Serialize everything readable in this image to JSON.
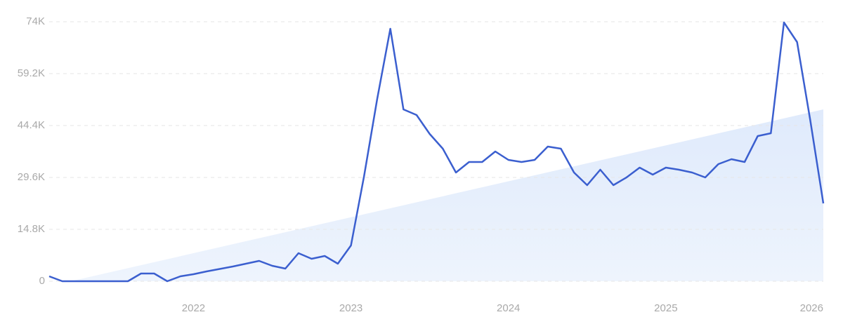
{
  "chart_data": {
    "type": "line",
    "categories": [
      null,
      null,
      null,
      null,
      null,
      null,
      null,
      null,
      null,
      null,
      null,
      "2022",
      null,
      null,
      null,
      null,
      null,
      null,
      null,
      null,
      null,
      null,
      null,
      "2023",
      null,
      null,
      null,
      null,
      null,
      null,
      null,
      null,
      null,
      null,
      null,
      "2024",
      null,
      null,
      null,
      null,
      null,
      null,
      null,
      null,
      null,
      null,
      null,
      "2025",
      null,
      null,
      null,
      null,
      null,
      null,
      null,
      null,
      null,
      null,
      null,
      "2026"
    ],
    "series": [
      {
        "color": "#3b5fcf",
        "values": [
          1400,
          0,
          0,
          0,
          0,
          0,
          0,
          2200,
          2200,
          0,
          1400,
          2000,
          2800,
          3500,
          4200,
          5000,
          5800,
          4400,
          3600,
          8000,
          6400,
          7200,
          5000,
          10200,
          30000,
          52000,
          72000,
          49000,
          47400,
          42000,
          37800,
          31000,
          34000,
          34000,
          37000,
          34600,
          34000,
          34600,
          38400,
          37800,
          31000,
          27400,
          31800,
          27400,
          29600,
          32400,
          30400,
          32400,
          31800,
          31000,
          29600,
          33400,
          34800,
          34000,
          41400,
          42200,
          73800,
          68200,
          46000,
          22200
        ]
      }
    ],
    "trend": [
      -1400,
      49000
    ],
    "trend_color": "#e3edfc",
    "ylim": [
      0,
      74000
    ],
    "yticks": [
      0,
      {
        "value": 14800,
        "label": "14.8K"
      },
      {
        "value": 29600,
        "label": "29.6K"
      },
      {
        "value": 44400,
        "label": "44.4K"
      },
      {
        "value": 59200,
        "label": "59.2K"
      },
      {
        "value": 74000,
        "label": "74K"
      }
    ],
    "grid": true
  }
}
